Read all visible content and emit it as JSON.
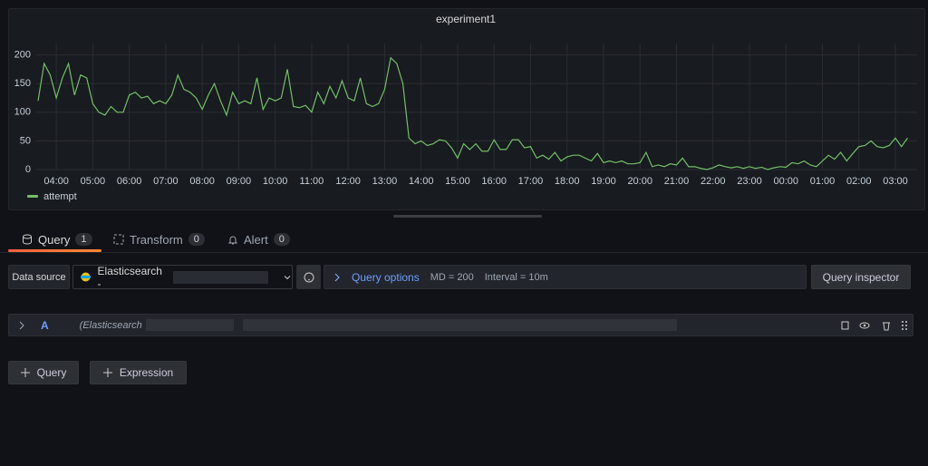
{
  "chart_data": {
    "type": "line",
    "title": "experiment1",
    "categories": [
      null,
      null,
      null,
      "04:00",
      null,
      null,
      null,
      null,
      null,
      "05:00",
      null,
      null,
      null,
      null,
      null,
      "06:00",
      null,
      null,
      null,
      null,
      null,
      "07:00",
      null,
      null,
      null,
      null,
      null,
      "08:00",
      null,
      null,
      null,
      null,
      null,
      "09:00",
      null,
      null,
      null,
      null,
      null,
      "10:00",
      null,
      null,
      null,
      null,
      null,
      "11:00",
      null,
      null,
      null,
      null,
      null,
      "12:00",
      null,
      null,
      null,
      null,
      null,
      "13:00",
      null,
      null,
      null,
      null,
      null,
      "14:00",
      null,
      null,
      null,
      null,
      null,
      "15:00",
      null,
      null,
      null,
      null,
      null,
      "16:00",
      null,
      null,
      null,
      null,
      null,
      "17:00",
      null,
      null,
      null,
      null,
      null,
      "18:00",
      null,
      null,
      null,
      null,
      null,
      "19:00",
      null,
      null,
      null,
      null,
      null,
      "20:00",
      null,
      null,
      null,
      null,
      null,
      "21:00",
      null,
      null,
      null,
      null,
      null,
      "22:00",
      null,
      null,
      null,
      null,
      null,
      "23:00",
      null,
      null,
      null,
      null,
      null,
      "00:00",
      null,
      null,
      null,
      null,
      null,
      "01:00",
      null,
      null,
      null,
      null,
      null,
      "02:00",
      null,
      null,
      null,
      null,
      null,
      "03:00",
      null,
      null
    ],
    "series": [
      {
        "name": "attempt",
        "color": "#73bf69",
        "values": [
          120,
          185,
          165,
          125,
          160,
          185,
          130,
          165,
          160,
          115,
          100,
          95,
          110,
          100,
          100,
          130,
          135,
          125,
          128,
          115,
          120,
          115,
          130,
          165,
          140,
          135,
          125,
          105,
          130,
          150,
          120,
          95,
          135,
          115,
          120,
          115,
          160,
          105,
          125,
          120,
          125,
          175,
          110,
          108,
          112,
          100,
          135,
          115,
          145,
          125,
          155,
          125,
          120,
          160,
          115,
          110,
          115,
          140,
          195,
          185,
          150,
          55,
          45,
          50,
          42,
          45,
          52,
          50,
          38,
          20,
          45,
          35,
          45,
          32,
          32,
          52,
          35,
          35,
          52,
          52,
          38,
          40,
          20,
          25,
          18,
          30,
          15,
          22,
          25,
          25,
          20,
          15,
          28,
          12,
          15,
          12,
          15,
          10,
          10,
          12,
          30,
          5,
          8,
          5,
          10,
          8,
          20,
          5,
          5,
          2,
          0,
          3,
          8,
          5,
          3,
          5,
          2,
          5,
          2,
          4,
          0,
          3,
          5,
          4,
          12,
          10,
          15,
          8,
          5,
          15,
          25,
          18,
          30,
          15,
          28,
          40,
          42,
          50,
          40,
          38,
          42,
          55,
          40,
          55
        ]
      }
    ],
    "ylim": [
      0,
      220
    ],
    "yticks": [
      0,
      50,
      100,
      150,
      200
    ],
    "grid": true
  },
  "tabs": [
    {
      "label": "Query",
      "count": 1
    },
    {
      "label": "Transform",
      "count": 0
    },
    {
      "label": "Alert",
      "count": 0
    }
  ],
  "query_bar": {
    "data_source_label": "Data source",
    "data_source": "Elasticsearch -",
    "options": "Query options",
    "md": "MD = 200",
    "interval": "Interval = 10m",
    "inspector": "Query inspector"
  },
  "query_row": {
    "ref": "A",
    "source": "(Elasticsearch"
  },
  "buttons": [
    "Query",
    "Expression"
  ]
}
